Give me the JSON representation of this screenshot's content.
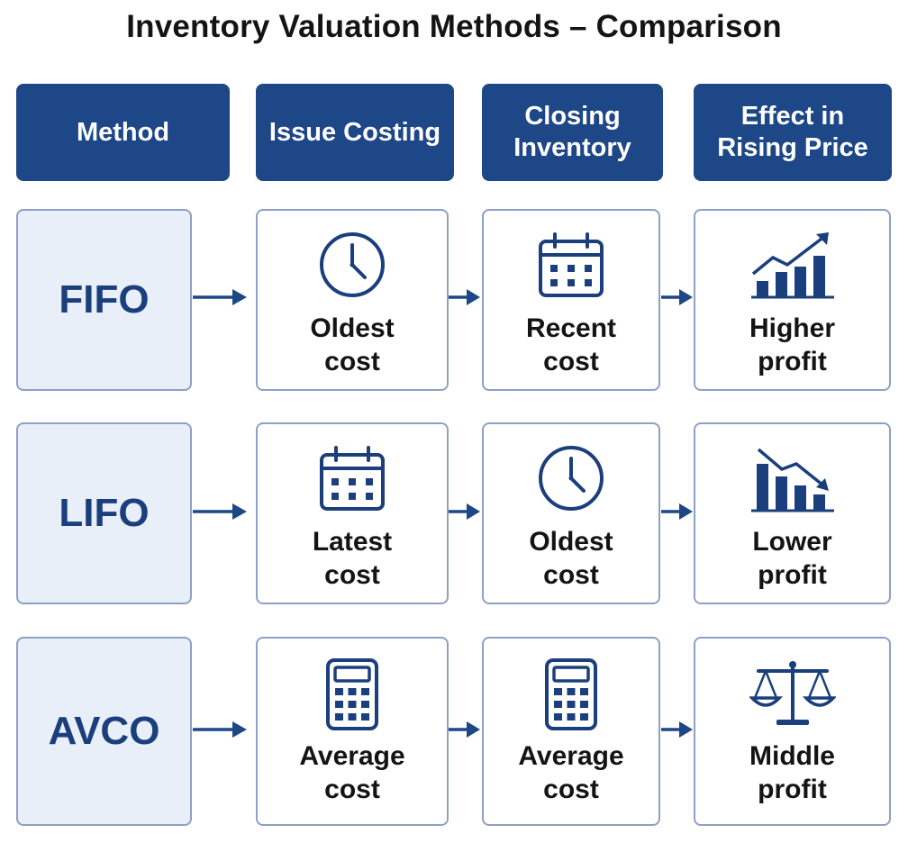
{
  "title": "Inventory Valuation Methods – Comparison",
  "headers": [
    "Method",
    "Issue Costing",
    "Closing Inventory",
    "Effect in Rising Price"
  ],
  "header_lines": [
    [
      "Method"
    ],
    [
      "Issue Costing"
    ],
    [
      "Closing",
      "Inventory"
    ],
    [
      "Effect in",
      "Rising Price"
    ]
  ],
  "rows": [
    {
      "method": "FIFO",
      "issue": {
        "icon": "clock-icon",
        "line1": "Oldest",
        "line2": "cost"
      },
      "closing": {
        "icon": "calendar-icon",
        "line1": "Recent",
        "line2": "cost"
      },
      "effect": {
        "icon": "rising-bar-chart-icon",
        "line1": "Higher",
        "line2": "profit"
      }
    },
    {
      "method": "LIFO",
      "issue": {
        "icon": "calendar-icon",
        "line1": "Latest",
        "line2": "cost"
      },
      "closing": {
        "icon": "clock-icon",
        "line1": "Oldest",
        "line2": "cost"
      },
      "effect": {
        "icon": "falling-bar-chart-icon",
        "line1": "Lower",
        "line2": "profit"
      }
    },
    {
      "method": "AVCO",
      "issue": {
        "icon": "calculator-icon",
        "line1": "Average",
        "line2": "cost"
      },
      "closing": {
        "icon": "calculator-icon",
        "line1": "Average",
        "line2": "cost"
      },
      "effect": {
        "icon": "balance-scale-icon",
        "line1": "Middle",
        "line2": "profit"
      }
    }
  ],
  "colors": {
    "header_bg": "#1d4787",
    "method_bg": "#e8eff9",
    "card_border": "#8da1c4",
    "icon": "#1b3f7d",
    "arrow": "#1d4787"
  }
}
